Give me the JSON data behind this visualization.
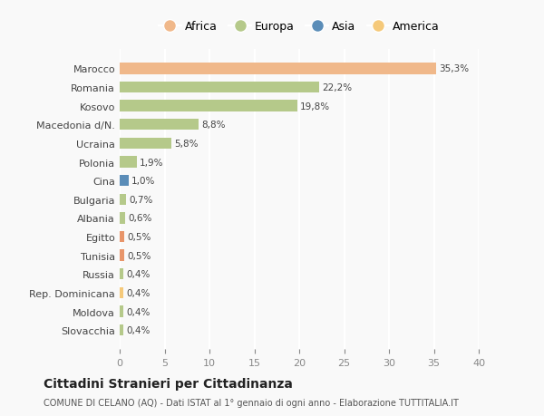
{
  "categories": [
    "Slovacchia",
    "Moldova",
    "Rep. Dominicana",
    "Russia",
    "Tunisia",
    "Egitto",
    "Albania",
    "Bulgaria",
    "Cina",
    "Polonia",
    "Ucraina",
    "Macedonia d/N.",
    "Kosovo",
    "Romania",
    "Marocco"
  ],
  "values": [
    0.4,
    0.4,
    0.4,
    0.4,
    0.5,
    0.5,
    0.6,
    0.7,
    1.0,
    1.9,
    5.8,
    8.8,
    19.8,
    22.2,
    35.3
  ],
  "labels": [
    "0,4%",
    "0,4%",
    "0,4%",
    "0,4%",
    "0,5%",
    "0,5%",
    "0,6%",
    "0,7%",
    "1,0%",
    "1,9%",
    "5,8%",
    "8,8%",
    "19,8%",
    "22,2%",
    "35,3%"
  ],
  "colors": [
    "#b5c98a",
    "#b5c98a",
    "#f5c97a",
    "#b5c98a",
    "#e8956a",
    "#e8956a",
    "#b5c98a",
    "#b5c98a",
    "#5b8db8",
    "#b5c98a",
    "#b5c98a",
    "#b5c98a",
    "#b5c98a",
    "#b5c98a",
    "#f0b88a"
  ],
  "legend_labels": [
    "Africa",
    "Europa",
    "Asia",
    "America"
  ],
  "legend_colors": [
    "#f0b88a",
    "#b5c98a",
    "#5b8db8",
    "#f5c97a"
  ],
  "title": "Cittadini Stranieri per Cittadinanza",
  "subtitle": "COMUNE DI CELANO (AQ) - Dati ISTAT al 1° gennaio di ogni anno - Elaborazione TUTTITALIA.IT",
  "xlim": [
    0,
    40
  ],
  "xticks": [
    0,
    5,
    10,
    15,
    20,
    25,
    30,
    35,
    40
  ],
  "background_color": "#f9f9f9",
  "grid_color": "#ffffff",
  "bar_height": 0.6
}
